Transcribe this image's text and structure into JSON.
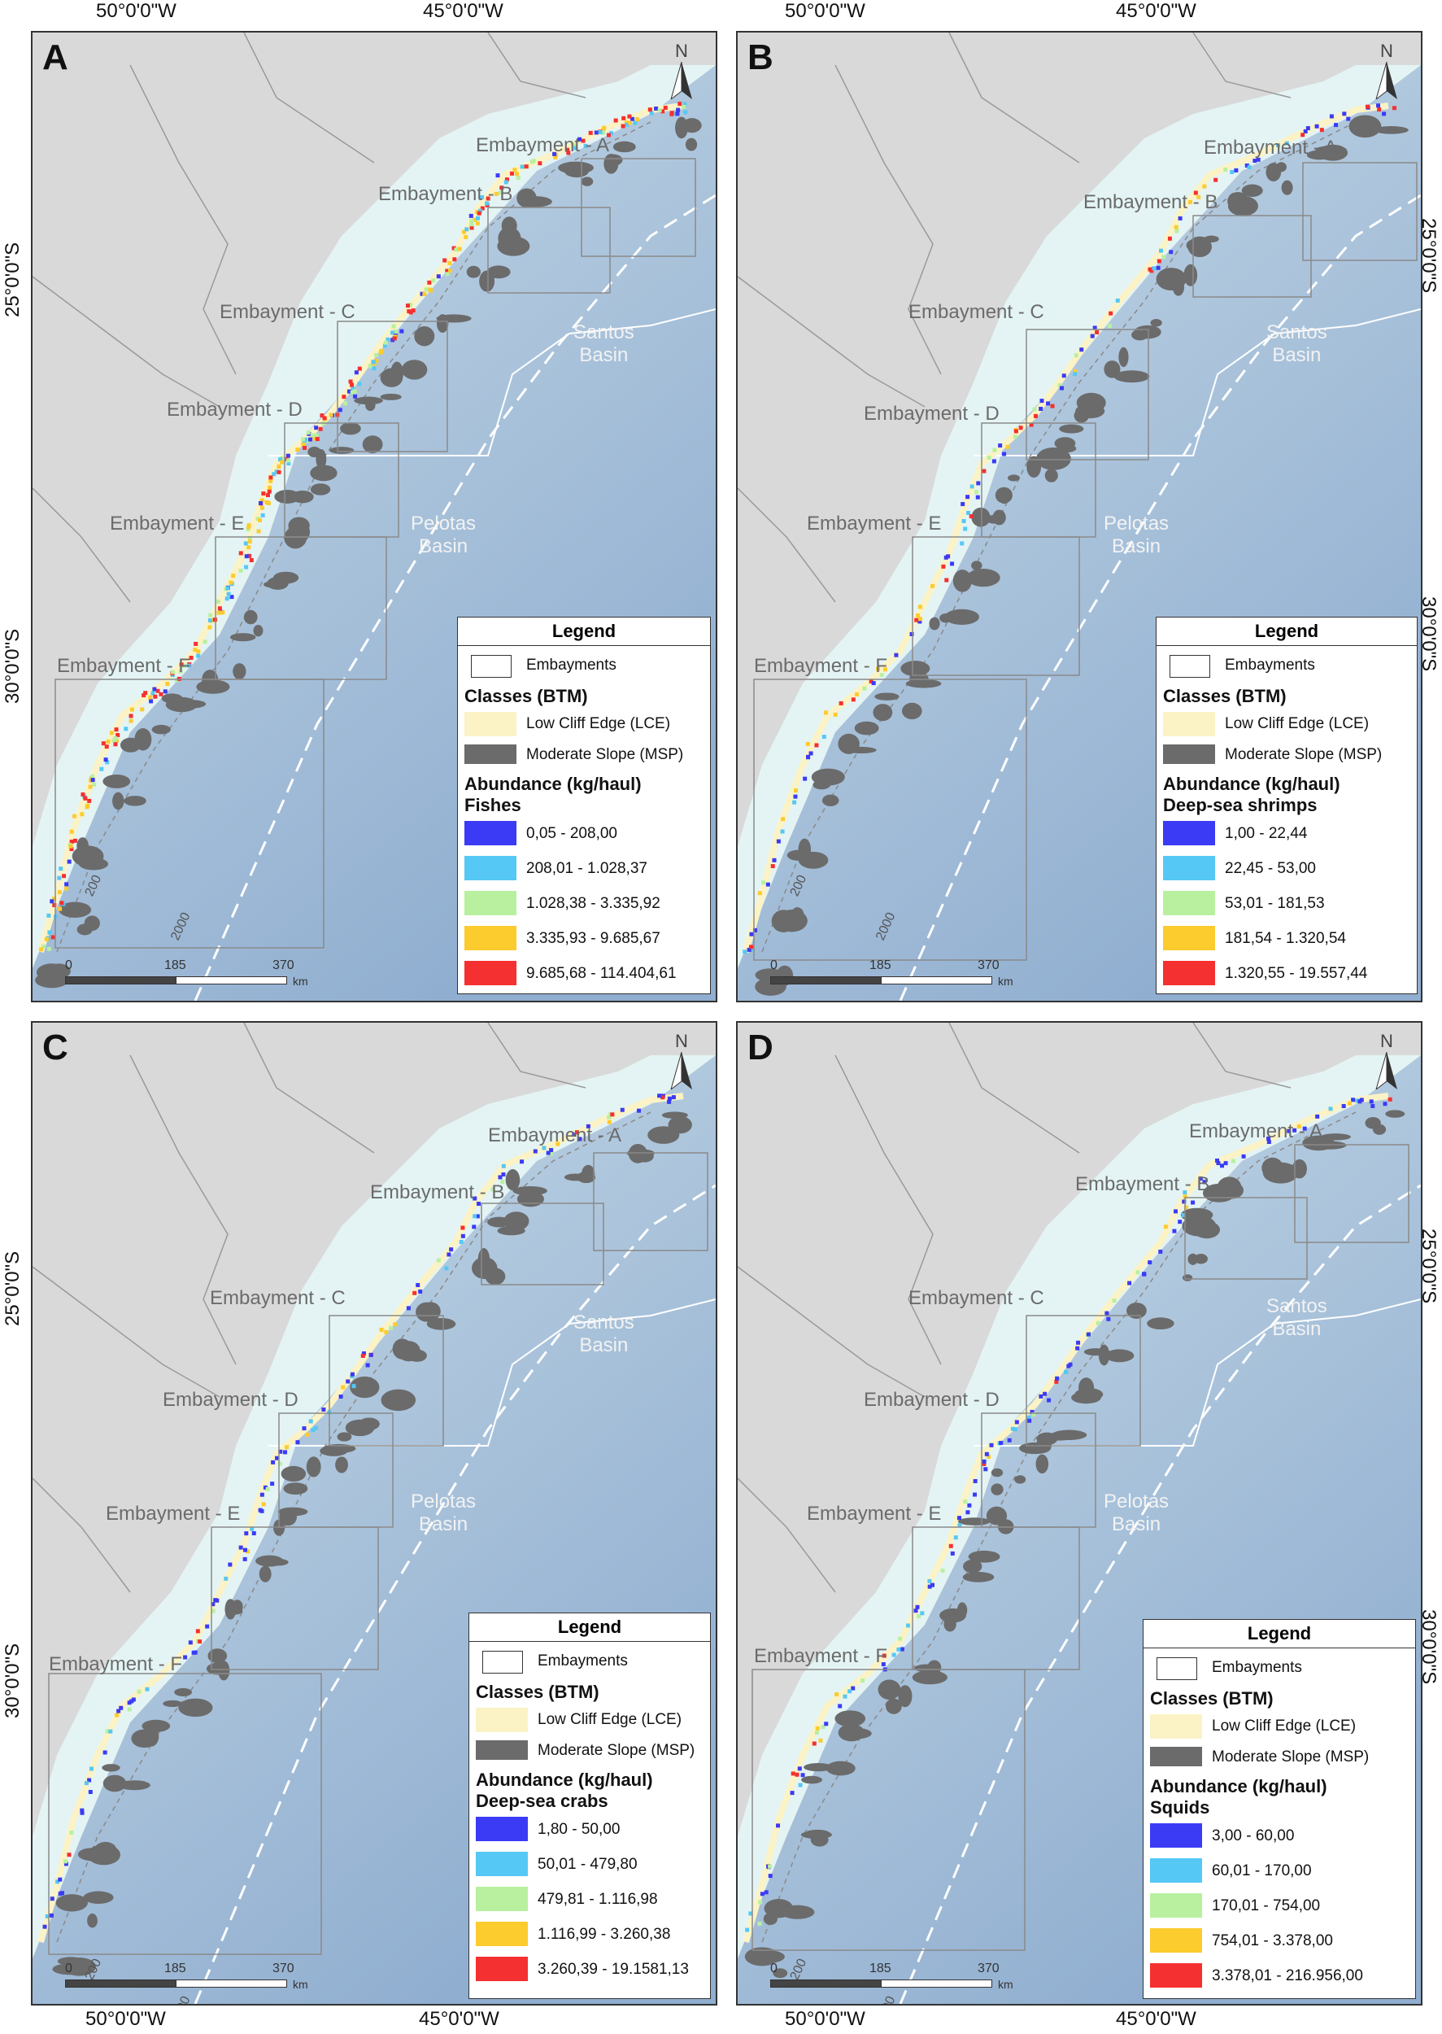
{
  "coords": {
    "top_left": "50°0'0\"W",
    "top_right": "45°0'0\"W",
    "bottom_left": "50°0'0\"W",
    "bottom_right": "45°0'0\"W",
    "lat_25": "25°0'0\"S",
    "lat_30": "30°0'0\"S"
  },
  "map_labels": {
    "north": "N",
    "emb_a": "Embayment - A",
    "emb_b": "Embayment - B",
    "emb_c": "Embayment - C",
    "emb_d": "Embayment - D",
    "emb_e": "Embayment - E",
    "emb_f": "Embayment - F",
    "santos_1": "Santos",
    "santos_2": "Basin",
    "pelotas_1": "Pelotas",
    "pelotas_2": "Basin",
    "contour_200": "200",
    "contour_2000": "2000"
  },
  "scale": {
    "s0": "0",
    "s1": "185",
    "s2": "370",
    "unit": "km"
  },
  "legend_common": {
    "title": "Legend",
    "embayments": "Embayments",
    "classes": "Classes (BTM)",
    "lce": "Low Cliff Edge (LCE)",
    "msp": "Moderate Slope (MSP)",
    "abundance": "Abundance (kg/haul)"
  },
  "colors": {
    "class1": "#3b3bf5",
    "class2": "#56c8f5",
    "class3": "#b8f0a0",
    "class4": "#fccb2e",
    "class5": "#f53030",
    "lce": "#fbf3c6",
    "msp": "#6b6b6b",
    "land": "#d9d9d9",
    "shelf": "#e4f4f4",
    "deep": "#90aed0"
  },
  "panels": [
    {
      "label": "A",
      "group": "Fishes",
      "classes": [
        "0,05 - 208,00",
        "208,01 - 1.028,37",
        "1.028,38 - 3.335,92",
        "3.335,93 - 9.685,67",
        "9.685,68 - 114.404,61"
      ]
    },
    {
      "label": "B",
      "group": "Deep-sea shrimps",
      "classes": [
        "1,00 - 22,44",
        "22,45 - 53,00",
        "53,01 - 181,53",
        "181,54 - 1.320,54",
        "1.320,55 - 19.557,44"
      ]
    },
    {
      "label": "C",
      "group": "Deep-sea crabs",
      "classes": [
        "1,80 - 50,00",
        "50,01 - 479,80",
        "479,81 - 1.116,98",
        "1.116,99 - 3.260,38",
        "3.260,39 - 19.1581,13"
      ]
    },
    {
      "label": "D",
      "group": "Squids",
      "classes": [
        "3,00 - 60,00",
        "60,01 - 170,00",
        "170,01 - 754,00",
        "754,01 - 3.378,00",
        "3.378,01 - 216.956,00"
      ]
    }
  ]
}
